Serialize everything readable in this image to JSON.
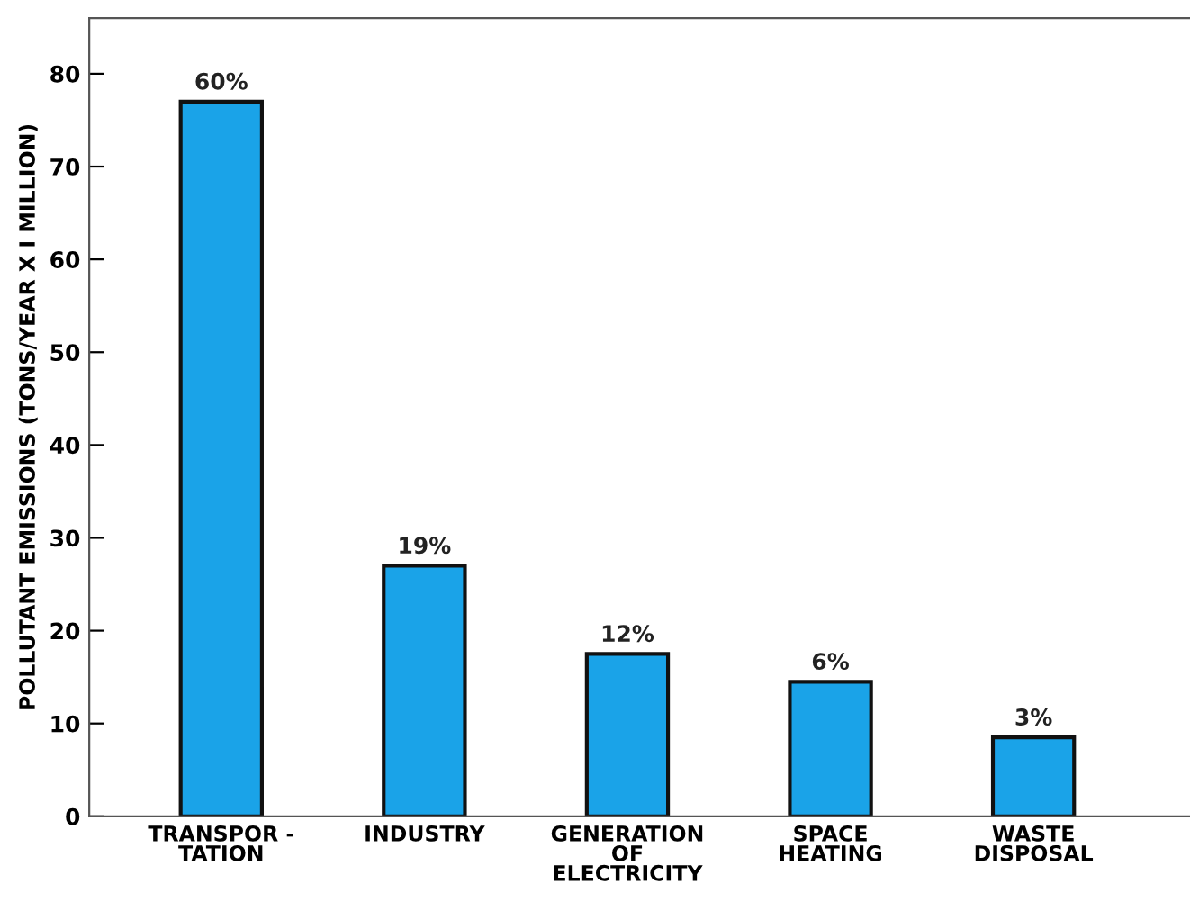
{
  "chart_data": {
    "type": "bar",
    "ylabel": "POLLUTANT EMISSIONS (TONS/YEAR X I MILLION)",
    "categories": [
      "TRANSPOR -\nTATION",
      "INDUSTRY",
      "GENERATION\nOF\nELECTRICITY",
      "SPACE\nHEATING",
      "WASTE\nDISPOSAL"
    ],
    "values": [
      77,
      27,
      17.5,
      14.5,
      8.5
    ],
    "annotations": [
      {
        "text": "60%",
        "x": "TRANSPOR -\nTATION",
        "y": 77
      },
      {
        "text": "19%",
        "x": "INDUSTRY",
        "y": 27
      },
      {
        "text": "12%",
        "x": "GENERATION\nOF\nELECTRICITY",
        "y": 17.5
      },
      {
        "text": "6%",
        "x": "SPACE\nHEATING",
        "y": 14.5
      },
      {
        "text": "3%",
        "x": "WASTE\nDISPOSAL",
        "y": 8.5
      }
    ],
    "color": "#1aa3e8",
    "ylim": [
      0,
      86
    ],
    "yticks": [
      0,
      10,
      20,
      30,
      40,
      50,
      60,
      70,
      80
    ],
    "grid": false,
    "legend": false
  }
}
